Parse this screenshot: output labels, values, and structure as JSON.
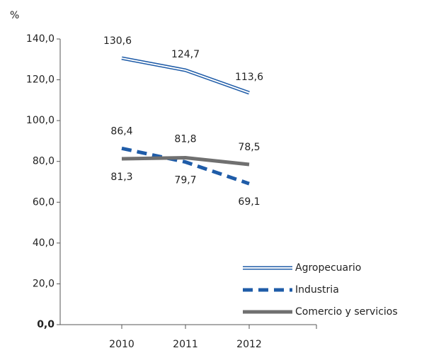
{
  "chart_data": {
    "type": "line",
    "y_label": "%",
    "categories": [
      "2010",
      "2011",
      "2012"
    ],
    "ylim": [
      0,
      140
    ],
    "yticks": [
      {
        "value": 0,
        "label": "0,0"
      },
      {
        "value": 20,
        "label": "20,0"
      },
      {
        "value": 40,
        "label": "40,0"
      },
      {
        "value": 60,
        "label": "60,0"
      },
      {
        "value": 80,
        "label": "80,0"
      },
      {
        "value": 100,
        "label": "100,0"
      },
      {
        "value": 120,
        "label": "120,0"
      },
      {
        "value": 140,
        "label": "140,0"
      }
    ],
    "legend": "lower right",
    "series": [
      {
        "name": "Agropecuario",
        "color": "#1f5ca8",
        "style": "double",
        "values": [
          130.6,
          124.7,
          113.6
        ],
        "value_labels": [
          "130,6",
          "124,7",
          "113,6"
        ]
      },
      {
        "name": "Industria",
        "color": "#1f5ca8",
        "style": "dashed",
        "values": [
          86.4,
          79.7,
          69.1
        ],
        "value_labels": [
          "86,4",
          "79,7",
          "69,1"
        ]
      },
      {
        "name": "Comercio y servicios",
        "color": "#707070",
        "style": "solid",
        "values": [
          81.3,
          81.8,
          78.5
        ],
        "value_labels": [
          "81,3",
          "81,8",
          "78,5"
        ]
      }
    ]
  }
}
